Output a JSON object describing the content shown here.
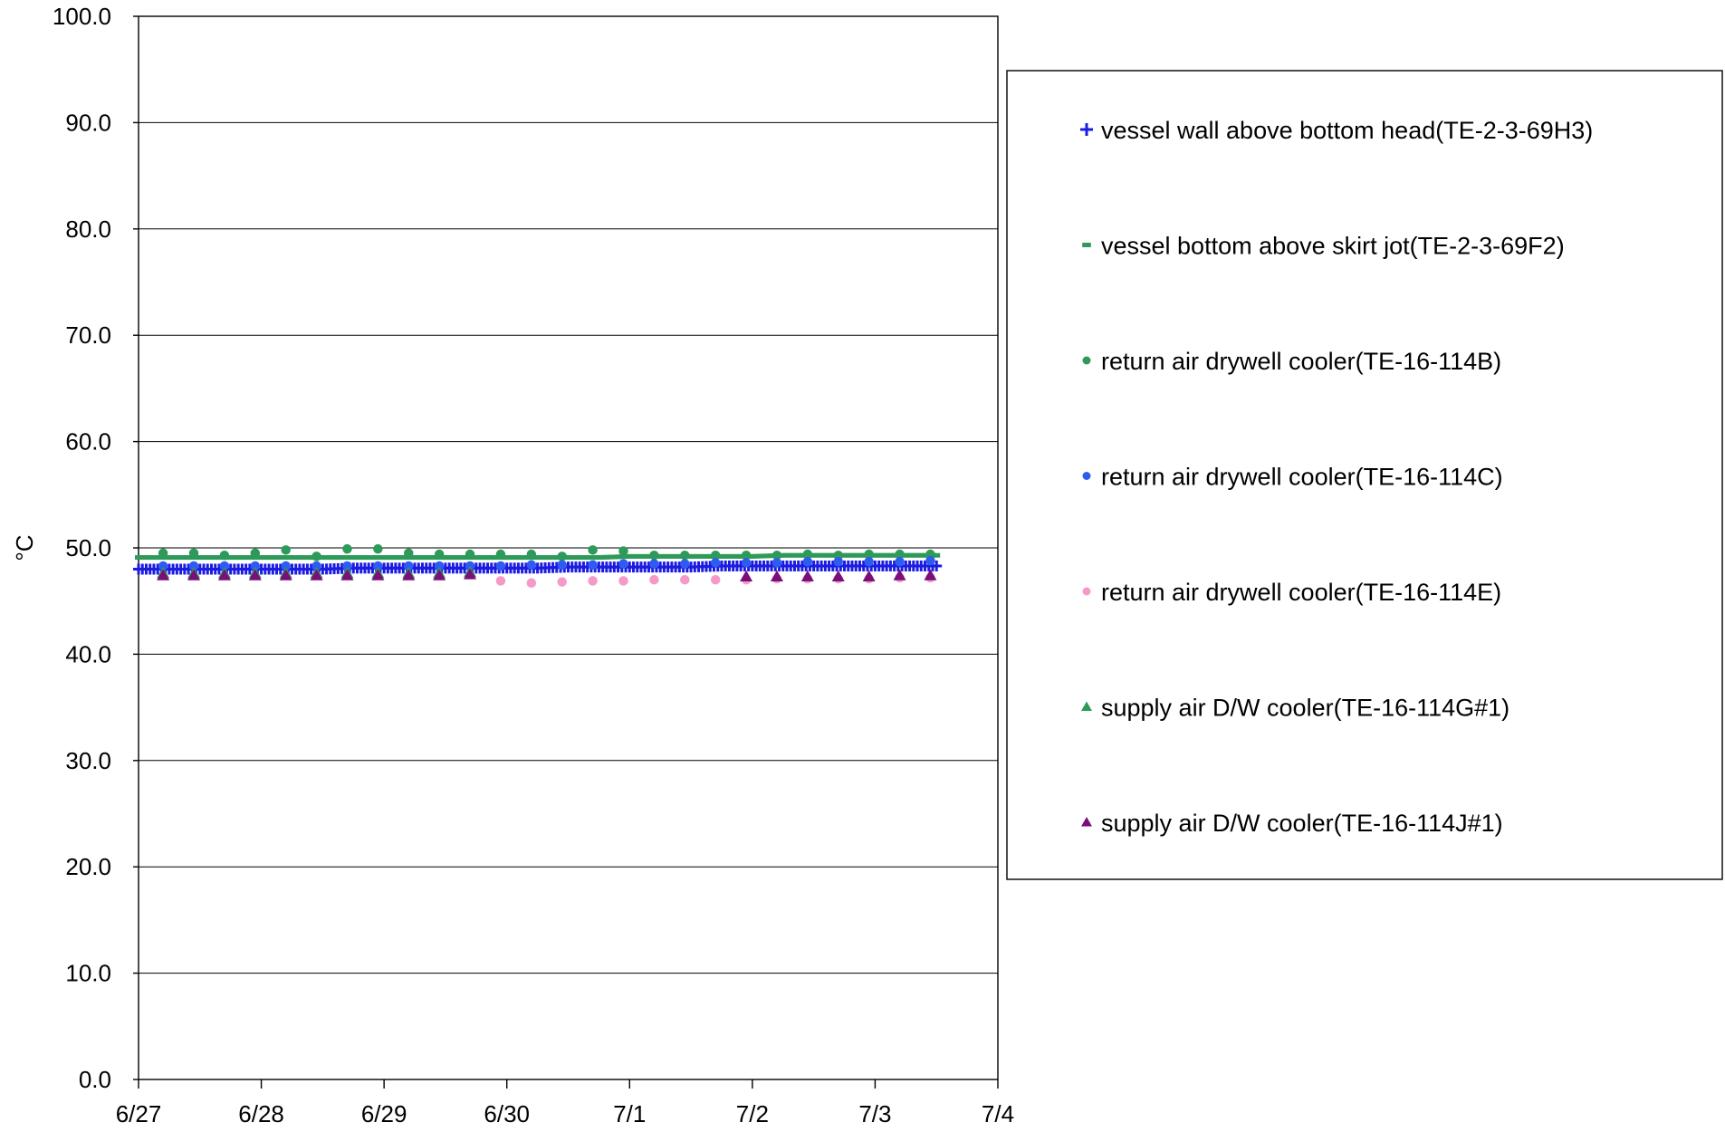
{
  "chart_data": {
    "type": "scatter",
    "ylabel": "°C",
    "xlabel": "",
    "ylim": [
      0,
      100
    ],
    "y_ticks": [
      0,
      10,
      20,
      30,
      40,
      50,
      60,
      70,
      80,
      90,
      100
    ],
    "y_tick_labels": [
      "0.0",
      "10.0",
      "20.0",
      "30.0",
      "40.0",
      "50.0",
      "60.0",
      "70.0",
      "80.0",
      "90.0",
      "100.0"
    ],
    "x_ticks": [
      "6/27",
      "6/28",
      "6/29",
      "6/30",
      "7/1",
      "7/2",
      "7/3",
      "7/4"
    ],
    "xlim": [
      "6/27",
      "7/4"
    ],
    "grid": "horizontal",
    "legend_position": "right",
    "series": [
      {
        "name": "vessel wall above bottom head(TE-2-3-69H3)",
        "marker": "plus",
        "color": "#1c1ce0",
        "x": [
          0.0,
          0.25,
          0.5,
          0.75,
          1.0,
          1.25,
          1.5,
          1.75,
          2.0,
          2.25,
          2.5,
          2.75,
          3.0,
          3.25,
          3.5,
          3.75,
          4.0,
          4.25,
          4.5,
          4.75,
          5.0,
          5.25,
          5.5,
          5.75,
          6.0,
          6.25,
          6.5
        ],
        "y": [
          48.0,
          48.0,
          48.0,
          48.0,
          48.0,
          48.0,
          48.0,
          48.1,
          48.1,
          48.1,
          48.1,
          48.1,
          48.1,
          48.1,
          48.2,
          48.2,
          48.2,
          48.2,
          48.2,
          48.3,
          48.3,
          48.3,
          48.3,
          48.3,
          48.3,
          48.3,
          48.3
        ]
      },
      {
        "name": "vessel bottom above skirt jot(TE-2-3-69F2)",
        "marker": "dash",
        "color": "#2e9a5a",
        "x": [
          0.0,
          0.25,
          0.5,
          0.75,
          1.0,
          1.25,
          1.5,
          1.75,
          2.0,
          2.25,
          2.5,
          2.75,
          3.0,
          3.25,
          3.5,
          3.75,
          4.0,
          4.25,
          4.5,
          4.75,
          5.0,
          5.25,
          5.5,
          5.75,
          6.0,
          6.25,
          6.5
        ],
        "y": [
          49.1,
          49.1,
          49.1,
          49.1,
          49.1,
          49.1,
          49.1,
          49.1,
          49.1,
          49.1,
          49.1,
          49.1,
          49.1,
          49.1,
          49.1,
          49.1,
          49.2,
          49.2,
          49.2,
          49.2,
          49.2,
          49.3,
          49.3,
          49.3,
          49.3,
          49.3,
          49.3
        ]
      },
      {
        "name": "return air drywell cooler(TE-16-114B)",
        "marker": "circle",
        "color": "#2e9a5a",
        "x": [
          0.2,
          0.45,
          0.7,
          0.95,
          1.2,
          1.45,
          1.7,
          1.95,
          2.2,
          2.45,
          2.7,
          2.95,
          3.2,
          3.45,
          3.7,
          3.95,
          4.2,
          4.45,
          4.7,
          4.95,
          5.2,
          5.45,
          5.7,
          5.95,
          6.2,
          6.45
        ],
        "y": [
          49.5,
          49.5,
          49.3,
          49.5,
          49.8,
          49.2,
          49.9,
          49.9,
          49.5,
          49.4,
          49.4,
          49.4,
          49.4,
          49.2,
          49.8,
          49.7,
          49.3,
          49.3,
          49.3,
          49.3,
          49.3,
          49.4,
          49.3,
          49.4,
          49.4,
          49.4
        ]
      },
      {
        "name": "return air drywell cooler(TE-16-114C)",
        "marker": "circle",
        "color": "#2f5cf0",
        "x": [
          0.2,
          0.45,
          0.7,
          0.95,
          1.2,
          1.45,
          1.7,
          1.95,
          2.2,
          2.45,
          2.7,
          2.95,
          3.2,
          3.45,
          3.7,
          3.95,
          4.2,
          4.45,
          4.7,
          4.95,
          5.2,
          5.45,
          5.7,
          5.95,
          6.2,
          6.45
        ],
        "y": [
          48.3,
          48.3,
          48.3,
          48.3,
          48.3,
          48.3,
          48.3,
          48.3,
          48.3,
          48.3,
          48.3,
          48.3,
          48.4,
          48.4,
          48.4,
          48.5,
          48.5,
          48.5,
          48.6,
          48.6,
          48.6,
          48.7,
          48.7,
          48.7,
          48.7,
          48.8
        ]
      },
      {
        "name": "return air drywell cooler(TE-16-114E)",
        "marker": "circle",
        "color": "#f59ac8",
        "x": [
          2.95,
          3.2,
          3.45,
          3.7,
          3.95,
          4.2,
          4.45,
          4.7,
          4.95,
          5.2,
          5.45,
          5.7,
          5.95,
          6.2,
          6.45
        ],
        "y": [
          46.9,
          46.7,
          46.8,
          46.9,
          46.9,
          47.0,
          47.0,
          47.0,
          47.0,
          47.1,
          47.1,
          47.1,
          47.1,
          47.2,
          47.2
        ]
      },
      {
        "name": "supply air D/W cooler(TE-16-114G#1)",
        "marker": "triangle",
        "color": "#2e9a5a",
        "x": [
          0.2,
          0.45,
          0.7,
          0.95,
          1.2,
          1.45,
          1.7,
          1.95,
          2.2,
          2.45,
          2.7
        ],
        "y": [
          47.6,
          47.6,
          47.6,
          47.6,
          47.6,
          47.6,
          47.6,
          47.6,
          47.6,
          47.6,
          47.7
        ]
      },
      {
        "name": "supply air D/W cooler(TE-16-114J#1)",
        "marker": "triangle",
        "color": "#7a0f7a",
        "x": [
          0.2,
          0.45,
          0.7,
          0.95,
          1.2,
          1.45,
          1.7,
          1.95,
          2.2,
          2.45,
          2.7,
          4.95,
          5.2,
          5.45,
          5.7,
          5.95,
          6.2,
          6.45
        ],
        "y": [
          47.4,
          47.4,
          47.4,
          47.4,
          47.4,
          47.4,
          47.4,
          47.4,
          47.4,
          47.4,
          47.5,
          47.3,
          47.3,
          47.3,
          47.3,
          47.3,
          47.4,
          47.4
        ]
      }
    ]
  }
}
